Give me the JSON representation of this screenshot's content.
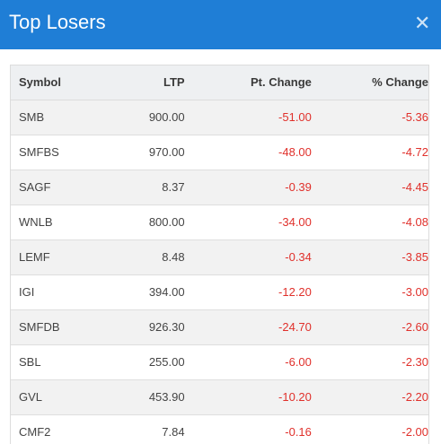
{
  "header": {
    "title": "Top Losers",
    "close_icon": "close-icon"
  },
  "table": {
    "columns": [
      "Symbol",
      "LTP",
      "Pt. Change",
      "% Change"
    ],
    "rows": [
      {
        "symbol": "SMB",
        "ltp": "900.00",
        "pt_change": "-51.00",
        "pct_change": "-5.36"
      },
      {
        "symbol": "SMFBS",
        "ltp": "970.00",
        "pt_change": "-48.00",
        "pct_change": "-4.72"
      },
      {
        "symbol": "SAGF",
        "ltp": "8.37",
        "pt_change": "-0.39",
        "pct_change": "-4.45"
      },
      {
        "symbol": "WNLB",
        "ltp": "800.00",
        "pt_change": "-34.00",
        "pct_change": "-4.08"
      },
      {
        "symbol": "LEMF",
        "ltp": "8.48",
        "pt_change": "-0.34",
        "pct_change": "-3.85"
      },
      {
        "symbol": "IGI",
        "ltp": "394.00",
        "pt_change": "-12.20",
        "pct_change": "-3.00"
      },
      {
        "symbol": "SMFDB",
        "ltp": "926.30",
        "pt_change": "-24.70",
        "pct_change": "-2.60"
      },
      {
        "symbol": "SBL",
        "ltp": "255.00",
        "pt_change": "-6.00",
        "pct_change": "-2.30"
      },
      {
        "symbol": "GVL",
        "ltp": "453.90",
        "pt_change": "-10.20",
        "pct_change": "-2.20"
      },
      {
        "symbol": "CMF2",
        "ltp": "7.84",
        "pt_change": "-0.16",
        "pct_change": "-2.00"
      }
    ]
  },
  "colors": {
    "header_bg": "#1f7ed6",
    "negative": "#e0302b"
  }
}
